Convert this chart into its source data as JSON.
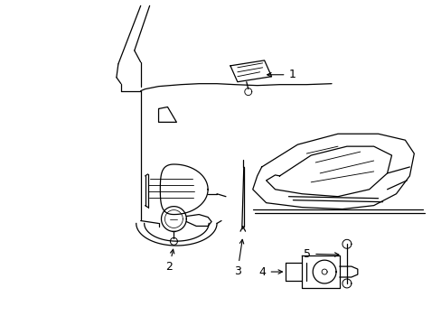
{
  "background_color": "#ffffff",
  "line_color": "#000000",
  "fig_width": 4.89,
  "fig_height": 3.6,
  "dpi": 100,
  "lw": 0.9,
  "label_fontsize": 9
}
